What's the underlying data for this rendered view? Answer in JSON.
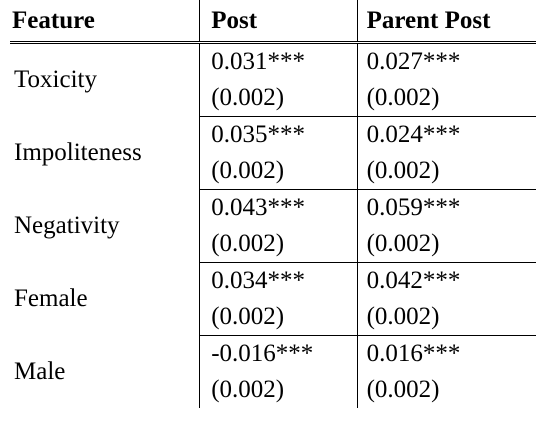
{
  "table": {
    "headers": [
      "Feature",
      "Post",
      "Parent Post"
    ],
    "rows": [
      {
        "feature": "Toxicity",
        "post_coef": "0.031***",
        "post_se": "(0.002)",
        "parent_coef": "0.027***",
        "parent_se": "(0.002)"
      },
      {
        "feature": "Impoliteness",
        "post_coef": "0.035***",
        "post_se": "(0.002)",
        "parent_coef": "0.024***",
        "parent_se": "(0.002)"
      },
      {
        "feature": "Negativity",
        "post_coef": "0.043***",
        "post_se": "(0.002)",
        "parent_coef": "0.059***",
        "parent_se": "(0.002)"
      },
      {
        "feature": "Female",
        "post_coef": "0.034***",
        "post_se": "(0.002)",
        "parent_coef": "0.042***",
        "parent_se": "(0.002)"
      },
      {
        "feature": "Male",
        "post_coef": "-0.016***",
        "post_se": "(0.002)",
        "parent_coef": "0.016***",
        "parent_se": "(0.002)"
      }
    ]
  }
}
